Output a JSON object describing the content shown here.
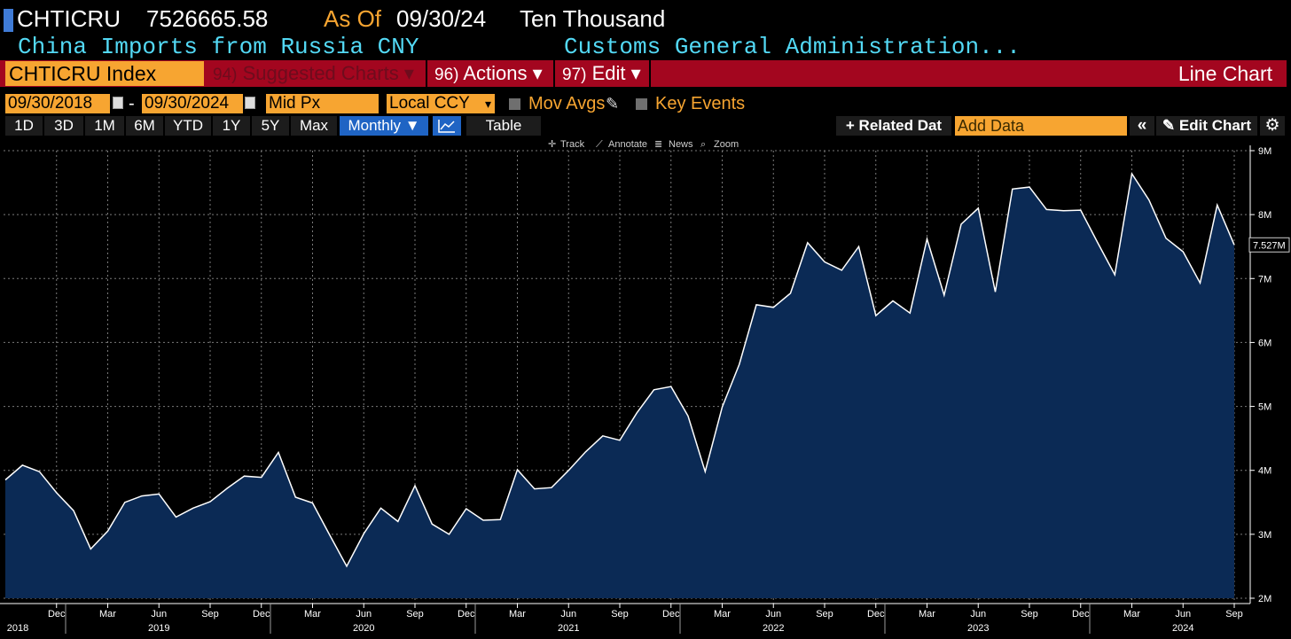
{
  "header": {
    "ticker": "CHTICRU",
    "last_value": "7526665.58",
    "as_of_label": "As Of",
    "as_of_date": "09/30/24",
    "units": "Ten Thousand",
    "description": "China Imports from Russia CNY",
    "source": "Customs General Administration..."
  },
  "command_bar": {
    "security": "CHTICRU Index",
    "suggested_num": "94)",
    "suggested_label": "Suggested Charts ▾",
    "actions_num": "96)",
    "actions_label": "Actions ▾",
    "edit_num": "97)",
    "edit_label": "Edit ▾",
    "chart_type": "Line Chart"
  },
  "date_row": {
    "start_date": "09/30/2018",
    "separator": "-",
    "end_date": "09/30/2024",
    "price_field": "Mid Px",
    "currency": "Local CCY",
    "mov_avgs_label": "Mov Avgs",
    "key_events_label": "Key Events"
  },
  "toolbar": {
    "ranges": [
      "1D",
      "3D",
      "1M",
      "6M",
      "YTD",
      "1Y",
      "5Y",
      "Max"
    ],
    "frequency": "Monthly ▼",
    "table_label": "Table",
    "related_data": "+ Related Dat",
    "add_data_placeholder": "Add Data",
    "collapse_label": "«",
    "edit_chart_label": "✎ Edit Chart",
    "settings_icon": "gear-icon",
    "chart_mode_icon": "line-chart-icon"
  },
  "chart_toolbar": {
    "track": "Track",
    "annotate": "Annotate",
    "news": "News",
    "zoom": "Zoom"
  },
  "colors": {
    "background": "#000000",
    "accent_orange": "#f7a531",
    "command_red": "#a3061f",
    "cyan": "#53d9f5",
    "fill": "#0b2a55",
    "line": "#ffffff",
    "selected_blue": "#1f64c4"
  },
  "chart_data": {
    "type": "area",
    "title": "",
    "xlabel": "",
    "ylabel": "",
    "ylim": [
      2000000,
      9000000
    ],
    "y_ticks": [
      "2M",
      "3M",
      "4M",
      "5M",
      "6M",
      "7M",
      "8M",
      "9M"
    ],
    "y_tick_values": [
      2000000,
      3000000,
      4000000,
      5000000,
      6000000,
      7000000,
      8000000,
      9000000
    ],
    "last_value_label": "7.527M",
    "last_value": 7526665.58,
    "x_tick_labels": [
      "Dec",
      "Mar",
      "Jun",
      "Sep",
      "Dec",
      "Mar",
      "Jun",
      "Sep",
      "Dec",
      "Mar",
      "Jun",
      "Sep",
      "Dec",
      "Mar",
      "Jun",
      "Sep",
      "Dec",
      "Mar",
      "Jun",
      "Sep",
      "Dec",
      "Mar",
      "Jun",
      "Sep"
    ],
    "x_tick_months": [
      "2018-12",
      "2019-03",
      "2019-06",
      "2019-09",
      "2019-12",
      "2020-03",
      "2020-06",
      "2020-09",
      "2020-12",
      "2021-03",
      "2021-06",
      "2021-09",
      "2021-12",
      "2022-03",
      "2022-06",
      "2022-09",
      "2022-12",
      "2023-03",
      "2023-06",
      "2023-09",
      "2023-12",
      "2024-03",
      "2024-06",
      "2024-09"
    ],
    "x_year_labels": [
      "2018",
      "2019",
      "2020",
      "2021",
      "2022",
      "2023",
      "2024"
    ],
    "x_year_months": [
      "2018-09",
      "2019-06",
      "2020-06",
      "2021-06",
      "2022-06",
      "2023-06",
      "2024-06"
    ],
    "grid": true,
    "series": [
      {
        "x": [
          "2018-09",
          "2018-10",
          "2018-11",
          "2018-12",
          "2019-01",
          "2019-02",
          "2019-03",
          "2019-04",
          "2019-05",
          "2019-06",
          "2019-07",
          "2019-08",
          "2019-09",
          "2019-10",
          "2019-11",
          "2019-12",
          "2020-01",
          "2020-02",
          "2020-03",
          "2020-04",
          "2020-05",
          "2020-06",
          "2020-07",
          "2020-08",
          "2020-09",
          "2020-10",
          "2020-11",
          "2020-12",
          "2021-01",
          "2021-02",
          "2021-03",
          "2021-04",
          "2021-05",
          "2021-06",
          "2021-07",
          "2021-08",
          "2021-09",
          "2021-10",
          "2021-11",
          "2021-12",
          "2022-01",
          "2022-02",
          "2022-03",
          "2022-04",
          "2022-05",
          "2022-06",
          "2022-07",
          "2022-08",
          "2022-09",
          "2022-10",
          "2022-11",
          "2022-12",
          "2023-01",
          "2023-02",
          "2023-03",
          "2023-04",
          "2023-05",
          "2023-06",
          "2023-07",
          "2023-08",
          "2023-09",
          "2023-10",
          "2023-11",
          "2023-12",
          "2024-01",
          "2024-02",
          "2024-03",
          "2024-04",
          "2024-05",
          "2024-06",
          "2024-07",
          "2024-08",
          "2024-09"
        ],
        "values": [
          3850000,
          4080000,
          3980000,
          3650000,
          3370000,
          2770000,
          3050000,
          3500000,
          3600000,
          3630000,
          3270000,
          3410000,
          3510000,
          3720000,
          3910000,
          3890000,
          4280000,
          3580000,
          3490000,
          2990000,
          2500000,
          3010000,
          3410000,
          3200000,
          3760000,
          3160000,
          3000000,
          3400000,
          3220000,
          3230000,
          4010000,
          3710000,
          3730000,
          4000000,
          4290000,
          4540000,
          4470000,
          4900000,
          5260000,
          5310000,
          4850000,
          3980000,
          4990000,
          5660000,
          6590000,
          6550000,
          6770000,
          7560000,
          7260000,
          7130000,
          7500000,
          6420000,
          6650000,
          6460000,
          7620000,
          6740000,
          7850000,
          8100000,
          6790000,
          8400000,
          8430000,
          8080000,
          8060000,
          8070000,
          7560000,
          7060000,
          8640000,
          8230000,
          7630000,
          7420000,
          6930000,
          8150000,
          7526665.58
        ]
      }
    ]
  }
}
